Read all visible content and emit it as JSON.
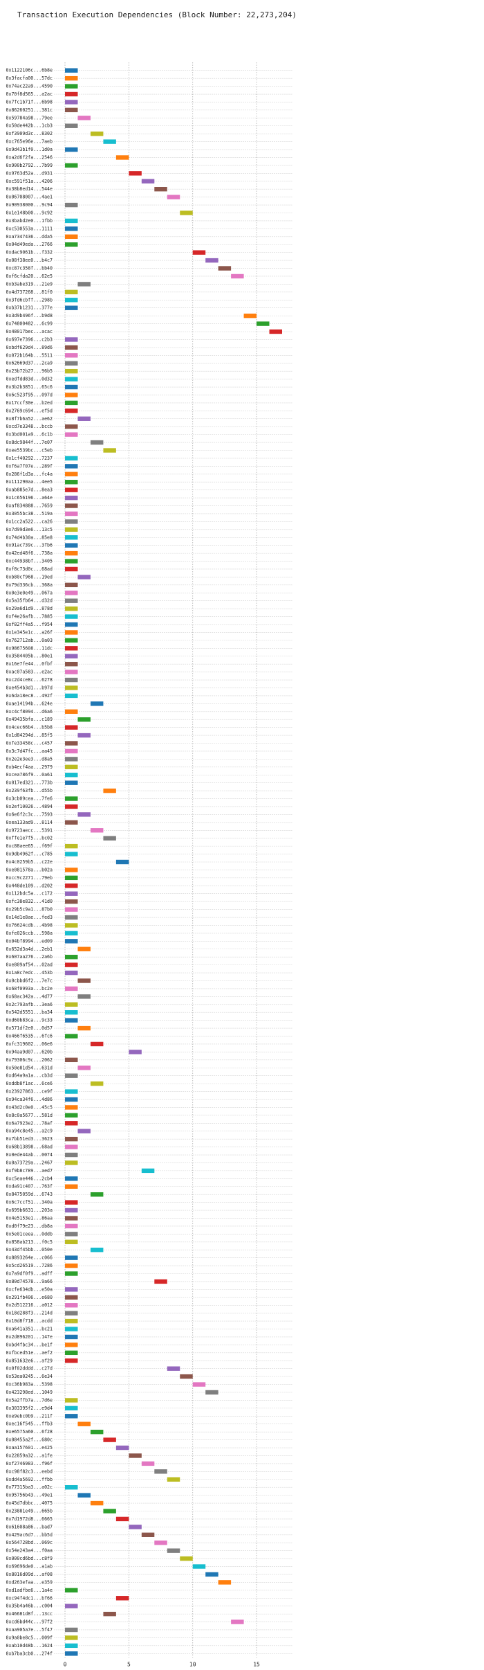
{
  "chart_data": {
    "type": "gantt",
    "title": "Transaction Execution Dependencies (Block Number: 22,273,204)",
    "categories": [
      "0x1122106c...6b8e",
      "0x3facfa00...57dc",
      "0x74ac22a9...4590",
      "0x70f8d565...a2ac",
      "0x7fc1b71f...6b98",
      "0x86260251...381c",
      "0x59784a98...79ee",
      "0x50de442b...1cb3",
      "0xf3909d3c...8302",
      "0xc765e96e...7aeb",
      "0x9d43b1f0...1d0a",
      "0xa2d6f2fa...2546",
      "0x900b2792...7b99",
      "0x9763d52a...d931",
      "0xc591f51a...4206",
      "0x38b8ed14...544e",
      "0x06708007...4ae1",
      "0x90938000...9c94",
      "0x1e148b00...9c92",
      "0x3babd2e0...1fbb",
      "0xc530553a...1111",
      "0xa7347436...dda5",
      "0x04d49eda...2766",
      "0xdac9061b...f332",
      "0x08f38ee0...b4c7",
      "0xc87c358f...bb40",
      "0xf6cfda20...62e5",
      "0xb3abe319...21e9",
      "0x4d737268...81f0",
      "0x3fd6cbff...298b",
      "0xb37b1231...377e",
      "0x3d9b496f...b9d8",
      "0x74800482...6c99",
      "0x48017bec...acac",
      "0x697e7396...c2b3",
      "0xbdf629d4...89d6",
      "0x072b164b...5511",
      "0x62669d37...2ca9",
      "0x23b72b27...96b5",
      "0xedfdd83d...0d32",
      "0x3b2b3851...65c6",
      "0x6c523f95...097d",
      "0x17ccf30e...b2ed",
      "0x2769c694...ef5d",
      "0x8f7b6a52...ae62",
      "0xcd7e3348...bccb",
      "0x3bd001a9...6c1b",
      "0x8dc9844f...7e07",
      "0xee5539bc...c5eb",
      "0x1cf40292...7237",
      "0xf6a7f07e...289f",
      "0x286f1d3a...fc4a",
      "0x111290aa...4ee5",
      "0xab885e7d...8ea3",
      "0x1c656196...a64e",
      "0xaf834888...7659",
      "0x3055bc38...519a",
      "0x1cc2a522...ca26",
      "0x7d99d3e6...13c5",
      "0x74d4b30a...85e8",
      "0x91ac739c...3fb6",
      "0x42ed48f6...738a",
      "0xc44938bf...3405",
      "0xf8c73d0c...68ad",
      "0xb80cf968...19ed",
      "0x79d336cb...368a",
      "0x0e3e0e49...067a",
      "0x5a35fb64...d32d",
      "0x29a6d1d9...878d",
      "0xf4e26afb...7885",
      "0xf82ff4a5...f954",
      "0x1e345e1c...a26f",
      "0x762712ab...0a03",
      "0x98675608...11dc",
      "0x3584405b...80e1",
      "0x16e7fe44...0fbf",
      "0xac07a583...e2ac",
      "0xc2d4ce8c...6278",
      "0xe454b3d1...b97d",
      "0x6da18ec8...492f",
      "0xae14194b...624e",
      "0xc4cf8094...d6a6",
      "0x49435bfa...c189",
      "0x4cec66b4...b5b8",
      "0x1d84294d...85f5",
      "0xfe33458c...c457",
      "0x3c7d47fc...aa45",
      "0x2e2e3ee3...d8a5",
      "0xb4ecf4aa...2979",
      "0xcea786f9...0a61",
      "0x017ed321...773b",
      "0x239f63fb...d55b",
      "0x3cb09cea...7fe6",
      "0x2ef10026...4894",
      "0x6e6f2c3c...7593",
      "0xea133ad9...8114",
      "0x9723aecc...5391",
      "0xffe1e7f5...bc02",
      "0xc88aee65...f69f",
      "0x9db4962f...c785",
      "0x4c0259b5...c22e",
      "0xe081578a...b02a",
      "0xcc9c2271...79eb",
      "0x448de109...d202",
      "0x112bdc5a...c172",
      "0xfc38e832...41d0",
      "0x29b5c9a1...87b0",
      "0x14d1e8ae...fed3",
      "0x76624cdb...4b98",
      "0xfe026ccb...598a",
      "0x04bf8994...ed09",
      "0x652d3a4d...2eb1",
      "0x607aa276...2a6b",
      "0xe809af54...02ad",
      "0x1a8c7edc...453b",
      "0x0cbbd6f2...7e7c",
      "0x68f0993a...bc2e",
      "0x68ac342a...4d77",
      "0x2c793afb...3ea6",
      "0x542d5551...ba34",
      "0xd60b83ca...9c33",
      "0x571df2e0...0d57",
      "0x466f6535...6fc6",
      "0xfc319602...06e6",
      "0x94aa9d07...620b",
      "0x79306c9c...2062",
      "0x50e81d54...631d",
      "0xd64a9a1a...cb3d",
      "0xddb8f1ac...6ce6",
      "0x23927863...ce9f",
      "0x94ca34f6...4d86",
      "0x43d2c0e0...45c5",
      "0x8c0a5677...581d",
      "0x6a7923e2...78af",
      "0xa94c8e45...a2c9",
      "0x7bb51ed3...3623",
      "0x68b13898...68ad",
      "0x0ede44ab...0074",
      "0x0a73729a...2467",
      "0xf9b8c789...aed7",
      "0xc5eae446...2cb4",
      "0xda91c407...763f",
      "0x8475059d...6743",
      "0x6c7ccf51...340a",
      "0x699b6631...203a",
      "0x4e5153e1...86aa",
      "0xd0f79e23...db8a",
      "0x5e01ceea...0ddb",
      "0x858ab213...f0c5",
      "0x43df45bb...050e",
      "0x8893264e...c066",
      "0x5cd26519...7286",
      "0x7a9df0f9...adff",
      "0x80d74578...9a66",
      "0xcfe634db...e50a",
      "0x291fb406...e680",
      "0x2d512216...a012",
      "0x18d288f3...214d",
      "0x10d8f718...acdd",
      "0xa641a351...bc21",
      "0x2d896201...147e",
      "0xbd4fbc34...be1f",
      "0xfbced51e...aef2",
      "0x851632e6...af29",
      "0x0f02dddd...c27d",
      "0x53ea0245...6e34",
      "0xc36b983a...5398",
      "0x423298ed...1049",
      "0x5a2ffb7a...7d6e",
      "0x303395f2...e9d4",
      "0xe9ebc0b9...211f",
      "0xec16f545...ffb3",
      "0xe6575a60...6f28",
      "0x08455a2f...680c",
      "0xaa157601...e425",
      "0x22859a32...a1fe",
      "0xf2746983...f96f",
      "0xc98f82c3...eebd",
      "0xdd4a5692...ffbb",
      "0x77315ba3...a02c",
      "0x95756b43...49e1",
      "0x45d7dbbc...4075",
      "0x23881e49...665b",
      "0x7d1972d8...6665",
      "0x61608a86...bad7",
      "0x429ac6d7...bb5d",
      "0x564728bd...069c",
      "0x54e243a4...f0aa",
      "0x000cd6bd...c8f9",
      "0x69696de0...a1ab",
      "0x8016d09d...af08",
      "0xd263efaa...e359",
      "0xd1adfbe6...1a4e",
      "0xc94f4dc1...bf66",
      "0x35b4a46b...c004",
      "0x46681d8f...13cc",
      "0xcd6bd44c...97f2",
      "0xaa905a7e...5f47",
      "0x9a0be8c5...009f",
      "0xab10d48b...1624",
      "0xb7ba3cb0...274f"
    ],
    "values": [
      0,
      0,
      0,
      0,
      0,
      0,
      1,
      0,
      2,
      3,
      0,
      4,
      0,
      5,
      6,
      7,
      8,
      0,
      9,
      0,
      0,
      0,
      0,
      10,
      11,
      12,
      13,
      1,
      0,
      0,
      0,
      14,
      15,
      16,
      0,
      0,
      0,
      0,
      0,
      0,
      0,
      0,
      0,
      0,
      1,
      0,
      0,
      2,
      3,
      0,
      0,
      0,
      0,
      0,
      0,
      0,
      0,
      0,
      0,
      0,
      0,
      0,
      0,
      0,
      1,
      0,
      0,
      0,
      0,
      0,
      0,
      0,
      0,
      0,
      0,
      0,
      0,
      0,
      0,
      0,
      2,
      0,
      1,
      0,
      1,
      0,
      0,
      0,
      0,
      0,
      0,
      3,
      0,
      0,
      1,
      0,
      2,
      3,
      0,
      0,
      4,
      0,
      0,
      0,
      0,
      0,
      0,
      0,
      0,
      0,
      0,
      1,
      0,
      0,
      0,
      1,
      0,
      1,
      0,
      0,
      0,
      1,
      0,
      2,
      5,
      0,
      1,
      0,
      2,
      0,
      0,
      0,
      0,
      0,
      1,
      0,
      0,
      0,
      0,
      6,
      0,
      0,
      2,
      0,
      0,
      0,
      0,
      0,
      0,
      2,
      0,
      0,
      0,
      7,
      0,
      0,
      0,
      0,
      0,
      0,
      0,
      0,
      0,
      0,
      8,
      9,
      10,
      11,
      0,
      0,
      0,
      1,
      2,
      3,
      4,
      5,
      6,
      7,
      8,
      0,
      1,
      2,
      3,
      4,
      5,
      6,
      7,
      8,
      9,
      10,
      11,
      12,
      0,
      4,
      0,
      3,
      13,
      0,
      0,
      0,
      0
    ],
    "duration": 1,
    "colors": [
      "#1f77b4",
      "#ff7f0e",
      "#2ca02c",
      "#d62728",
      "#9467bd",
      "#8c564b",
      "#e377c2",
      "#7f7f7f",
      "#bcbd22",
      "#17becf"
    ],
    "xlim": [
      -0.85,
      17.85
    ],
    "xticks": [
      0,
      5,
      10,
      15
    ],
    "grid": true
  }
}
